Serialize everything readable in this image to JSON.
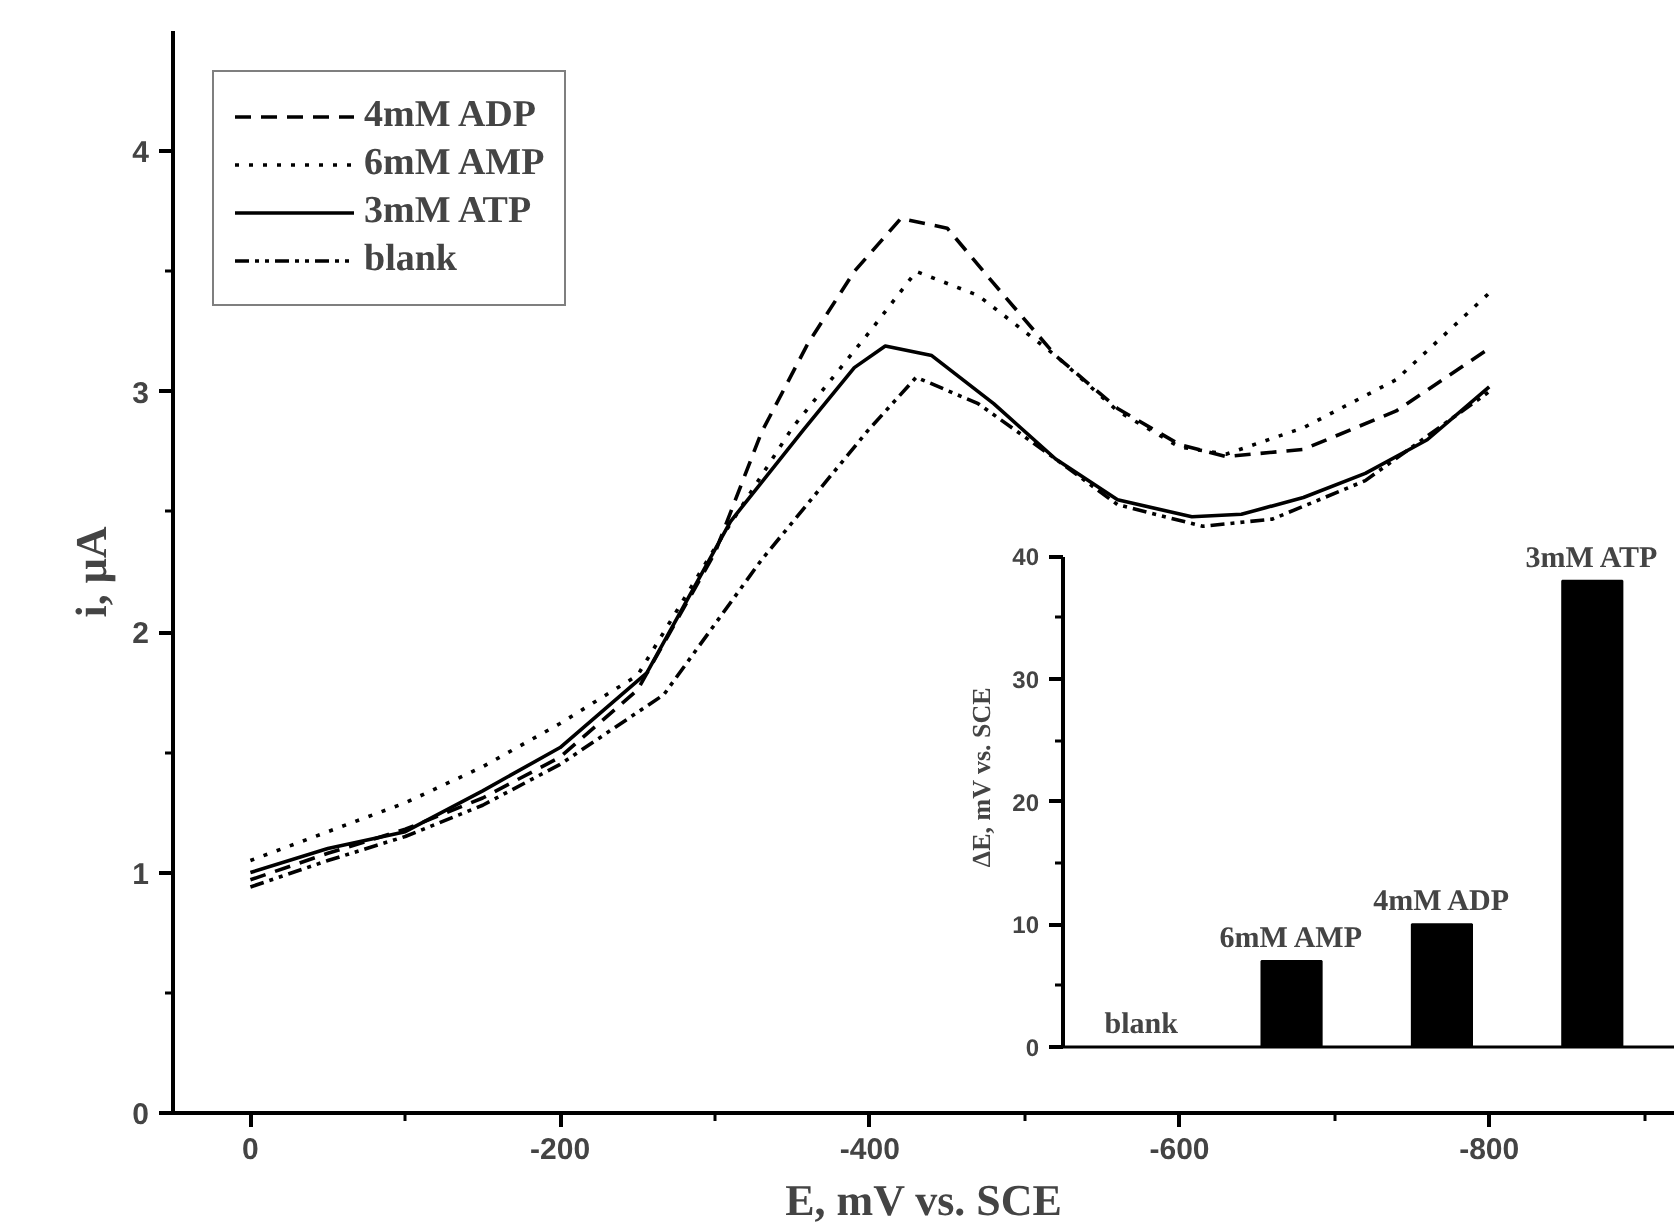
{
  "chart_data": [
    {
      "type": "line",
      "xlabel": "E, mV vs. SCE",
      "ylabel": "i, μA",
      "xlim": [
        50,
        -920
      ],
      "ylim": [
        0,
        4.5
      ],
      "xticks": [
        0,
        {
          "value": -100,
          "label": null
        },
        -200,
        {
          "value": -300,
          "label": null
        },
        -400,
        {
          "value": -500,
          "label": null
        },
        -600,
        {
          "value": -700,
          "label": null
        },
        -800,
        {
          "value": -900,
          "label": null
        }
      ],
      "yticks": [
        0,
        {
          "value": 0.5,
          "label": null
        },
        1,
        {
          "value": 1.5,
          "label": null
        },
        2,
        {
          "value": 2.5,
          "label": null
        },
        3,
        {
          "value": 3.5,
          "label": null
        },
        4
      ],
      "grid": false,
      "legend": "top left",
      "marker": "none",
      "series": [
        {
          "name": "4mM ADP",
          "color": "#000000",
          "line_style": "dashed",
          "x": [
            0,
            -50,
            -100,
            -150,
            -200,
            -250,
            -300,
            -330,
            -360,
            -390,
            -420,
            -450,
            -480,
            -520,
            -560,
            -600,
            -630,
            -680,
            -740,
            -800
          ],
          "values": [
            0.97,
            1.08,
            1.18,
            1.31,
            1.48,
            1.76,
            2.33,
            2.83,
            3.2,
            3.5,
            3.72,
            3.68,
            3.45,
            3.15,
            2.93,
            2.78,
            2.73,
            2.76,
            2.92,
            3.18
          ]
        },
        {
          "name": "6mM AMP",
          "color": "#000000",
          "line_style": "dotted",
          "x": [
            0,
            -50,
            -100,
            -150,
            -200,
            -250,
            -300,
            -350,
            -400,
            -430,
            -470,
            -520,
            -560,
            -600,
            -630,
            -680,
            -740,
            -800
          ],
          "values": [
            1.05,
            1.17,
            1.29,
            1.44,
            1.62,
            1.82,
            2.35,
            2.85,
            3.25,
            3.5,
            3.4,
            3.15,
            2.92,
            2.77,
            2.74,
            2.85,
            3.05,
            3.41
          ]
        },
        {
          "name": "3mM ATP",
          "color": "#000000",
          "line_style": "solid",
          "x": [
            0,
            -50,
            -100,
            -150,
            -200,
            -256,
            -310,
            -357,
            -390,
            -410,
            -440,
            -480,
            -520,
            -560,
            -608,
            -640,
            -680,
            -720,
            -760,
            -800
          ],
          "values": [
            1.0,
            1.1,
            1.17,
            1.34,
            1.52,
            1.83,
            2.46,
            2.84,
            3.1,
            3.19,
            3.15,
            2.95,
            2.72,
            2.55,
            2.48,
            2.49,
            2.56,
            2.66,
            2.8,
            3.02
          ]
        },
        {
          "name": "blank",
          "color": "#000000",
          "line_style": "dashdot",
          "x": [
            0,
            -50,
            -100,
            -150,
            -200,
            -267,
            -330,
            -399,
            -430,
            -470,
            -520,
            -560,
            -615,
            -660,
            -720,
            -800
          ],
          "values": [
            0.94,
            1.05,
            1.15,
            1.28,
            1.45,
            1.74,
            2.3,
            2.84,
            3.06,
            2.95,
            2.72,
            2.53,
            2.44,
            2.47,
            2.63,
            3.0
          ]
        }
      ]
    },
    {
      "type": "bar",
      "ylabel": "ΔE, mV vs. SCE",
      "categories": [
        "blank",
        "6mM AMP",
        "4mM ADP",
        "3mM ATP"
      ],
      "values": [
        0,
        7,
        10,
        38
      ],
      "color": "#000000",
      "ylim": [
        0,
        40
      ],
      "yticks": [
        0,
        {
          "value": 5,
          "label": null
        },
        10,
        {
          "value": 15,
          "label": null
        },
        20,
        {
          "value": 25,
          "label": null
        },
        30,
        {
          "value": 35,
          "label": null
        },
        40
      ],
      "grid": false
    }
  ]
}
